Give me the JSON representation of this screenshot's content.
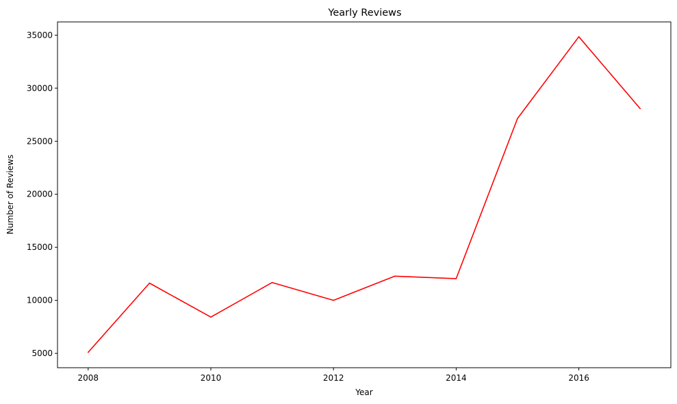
{
  "chart_data": {
    "type": "line",
    "title": "Yearly Reviews",
    "xlabel": "Year",
    "ylabel": "Number of Reviews",
    "xlim": [
      2007.5,
      2017.5
    ],
    "ylim": [
      3650,
      36250
    ],
    "xticks": [
      2008,
      2010,
      2012,
      2014,
      2016
    ],
    "yticks": [
      5000,
      10000,
      15000,
      20000,
      25000,
      30000,
      35000
    ],
    "grid": false,
    "legend": "none",
    "series": [
      {
        "color": "#ff0000",
        "x": [
          2008,
          2009,
          2010,
          2011,
          2012,
          2013,
          2014,
          2015,
          2016,
          2017
        ],
        "y": [
          5100,
          11620,
          8420,
          11680,
          10000,
          12280,
          12050,
          27150,
          34850,
          28080
        ]
      }
    ]
  }
}
